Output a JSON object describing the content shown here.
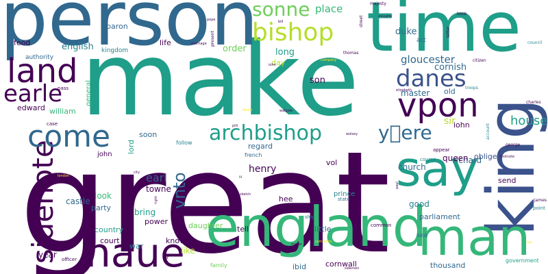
{
  "colors": {
    "dark_purple": "#440154",
    "indigo": "#3b528b",
    "blue": "#31688e",
    "teal": "#26828e",
    "sea_green": "#1f9e89",
    "green": "#35b779",
    "light_green": "#6ece58",
    "yellow_green": "#b5de2b",
    "yellow": "#fde725"
  },
  "words": [
    {
      "text": "make",
      "color": "sea_green"
    },
    {
      "text": "great",
      "color": "dark_purple"
    },
    {
      "text": "person",
      "color": "blue"
    },
    {
      "text": "time",
      "color": "sea_green"
    },
    {
      "text": "king",
      "color": "indigo"
    },
    {
      "text": "england",
      "color": "green"
    },
    {
      "text": "man",
      "color": "green"
    },
    {
      "text": "say",
      "color": "sea_green"
    },
    {
      "text": "haue",
      "color": "dark_purple"
    },
    {
      "text": "land",
      "color": "dark_purple"
    },
    {
      "text": "vpon",
      "color": "dark_purple"
    },
    {
      "text": "bishop",
      "color": "yellow_green"
    },
    {
      "text": "sidenote",
      "color": "dark_purple"
    },
    {
      "text": "come",
      "color": "blue"
    },
    {
      "text": "earle",
      "color": "dark_purple"
    },
    {
      "text": "archbishop",
      "color": "sea_green"
    },
    {
      "text": "danes",
      "color": "indigo"
    },
    {
      "text": "y\u0000ere",
      "color": "blue"
    },
    {
      "text": "sonne",
      "color": "light_green"
    },
    {
      "text": "vnto",
      "color": "blue"
    },
    {
      "text": "house",
      "color": "sea_green"
    },
    {
      "text": "earl",
      "color": "blue"
    },
    {
      "text": "henry",
      "color": "dark_purple"
    },
    {
      "text": "place",
      "color": "green"
    },
    {
      "text": "gloucester",
      "color": "blue"
    },
    {
      "text": "son",
      "color": "dark_purple"
    },
    {
      "text": "english",
      "color": "teal"
    },
    {
      "text": "order",
      "color": "light_green"
    },
    {
      "text": "duke",
      "color": "blue"
    },
    {
      "text": "long",
      "color": "sea_green"
    },
    {
      "text": "cornish",
      "color": "blue"
    },
    {
      "text": "master",
      "color": "blue"
    },
    {
      "text": "sir",
      "color": "yellow_green"
    },
    {
      "text": "iohn",
      "color": "dark_purple"
    },
    {
      "text": "old",
      "color": "blue"
    },
    {
      "text": "richard",
      "color": "blue"
    },
    {
      "text": "queen",
      "color": "dark_purple"
    },
    {
      "text": "church",
      "color": "blue"
    },
    {
      "text": "oblige",
      "color": "indigo"
    },
    {
      "text": "william",
      "color": "green"
    },
    {
      "text": "edward",
      "color": "dark_purple"
    },
    {
      "text": "baron",
      "color": "blue"
    },
    {
      "text": "life",
      "color": "dark_purple"
    },
    {
      "text": "feod",
      "color": "dark_purple"
    },
    {
      "text": "authority",
      "color": "blue"
    },
    {
      "text": "kingdom",
      "color": "teal"
    },
    {
      "text": "day",
      "color": "yellow_green"
    },
    {
      "text": "general",
      "color": "green"
    },
    {
      "text": "lord",
      "color": "sea_green"
    },
    {
      "text": "soon",
      "color": "blue"
    },
    {
      "text": "follow",
      "color": "teal"
    },
    {
      "text": "regard",
      "color": "blue"
    },
    {
      "text": "french",
      "color": "blue"
    },
    {
      "text": "vol",
      "color": "dark_purple"
    },
    {
      "text": "hee",
      "color": "dark_purple"
    },
    {
      "text": "prince",
      "color": "teal"
    },
    {
      "text": "state",
      "color": "blue"
    },
    {
      "text": "towne",
      "color": "dark_purple"
    },
    {
      "text": "look",
      "color": "green"
    },
    {
      "text": "castle",
      "color": "blue"
    },
    {
      "text": "party",
      "color": "blue"
    },
    {
      "text": "bring",
      "color": "sea_green"
    },
    {
      "text": "power",
      "color": "dark_purple"
    },
    {
      "text": "country",
      "color": "sea_green"
    },
    {
      "text": "court",
      "color": "dark_purple"
    },
    {
      "text": "war",
      "color": "teal"
    },
    {
      "text": "know",
      "color": "dark_purple"
    },
    {
      "text": "like",
      "color": "yellow_green"
    },
    {
      "text": "daughter",
      "color": "light_green"
    },
    {
      "text": "tell",
      "color": "dark_purple"
    },
    {
      "text": "year",
      "color": "dark_purple"
    },
    {
      "text": "family",
      "color": "light_green"
    },
    {
      "text": "ibid",
      "color": "blue"
    },
    {
      "text": "cornwall",
      "color": "dark_purple"
    },
    {
      "text": "little",
      "color": "blue"
    },
    {
      "text": "common",
      "color": "dark_purple"
    },
    {
      "text": "good",
      "color": "teal"
    },
    {
      "text": "parliament",
      "color": "blue"
    },
    {
      "text": "send",
      "color": "dark_purple"
    },
    {
      "text": "sea",
      "color": "blue"
    },
    {
      "text": "thousand",
      "color": "blue"
    },
    {
      "text": "government",
      "color": "sea_green"
    },
    {
      "text": "john",
      "color": "dark_purple"
    },
    {
      "text": "act",
      "color": "blue"
    },
    {
      "text": "marriage",
      "color": "dark_purple"
    },
    {
      "text": "bill",
      "color": "dark_purple"
    },
    {
      "text": "pope",
      "color": "dark_purple"
    },
    {
      "text": "majesty",
      "color": "dark_purple"
    },
    {
      "text": "present",
      "color": "dark_purple"
    },
    {
      "text": "street",
      "color": "dark_purple"
    },
    {
      "text": "stronghter",
      "color": "dark_purple"
    },
    {
      "text": "book",
      "color": "dark_purple"
    },
    {
      "text": "letter",
      "color": "dark_purple"
    },
    {
      "text": "council",
      "color": "teal"
    },
    {
      "text": "citizen",
      "color": "dark_purple"
    },
    {
      "text": "thomas",
      "color": "dark_purple"
    },
    {
      "text": "company",
      "color": "yellow"
    },
    {
      "text": "elizabeth",
      "color": "dark_purple"
    },
    {
      "text": "troops",
      "color": "teal"
    },
    {
      "text": "pass",
      "color": "dark_purple"
    },
    {
      "text": "iohn",
      "color": "dark_purple"
    },
    {
      "text": "walpole",
      "color": "dark_purple"
    },
    {
      "text": "death",
      "color": "yellow"
    },
    {
      "text": "pitt",
      "color": "dark_purple"
    },
    {
      "text": "wolsey",
      "color": "dark_purple"
    },
    {
      "text": "appear",
      "color": "dark_purple"
    },
    {
      "text": "george",
      "color": "dark_purple"
    },
    {
      "text": "charles",
      "color": "dark_purple"
    },
    {
      "text": "account",
      "color": "teal"
    },
    {
      "text": "footnote",
      "color": "dark_purple"
    },
    {
      "text": "course",
      "color": "teal"
    },
    {
      "text": "city",
      "color": "dark_purple"
    },
    {
      "text": "london",
      "color": "yellow"
    },
    {
      "text": "iii",
      "color": "dark_purple"
    },
    {
      "text": "sketch",
      "color": "dark_purple"
    },
    {
      "text": "paul",
      "color": "dark_purple"
    },
    {
      "text": "james",
      "color": "dark_purple"
    },
    {
      "text": "point",
      "color": "teal"
    },
    {
      "text": "case",
      "color": "dark_purple"
    },
    {
      "text": "right",
      "color": "dark_purple"
    },
    {
      "text": "mayor",
      "color": "dark_purple"
    },
    {
      "text": "commons",
      "color": "yellow"
    },
    {
      "text": "officer",
      "color": "dark_purple"
    },
    {
      "text": "ship",
      "color": "teal"
    },
    {
      "text": "far",
      "color": "dark_purple"
    },
    {
      "text": "tax",
      "color": "yellow"
    },
    {
      "text": "sidemen",
      "color": "dark_purple"
    }
  ]
}
